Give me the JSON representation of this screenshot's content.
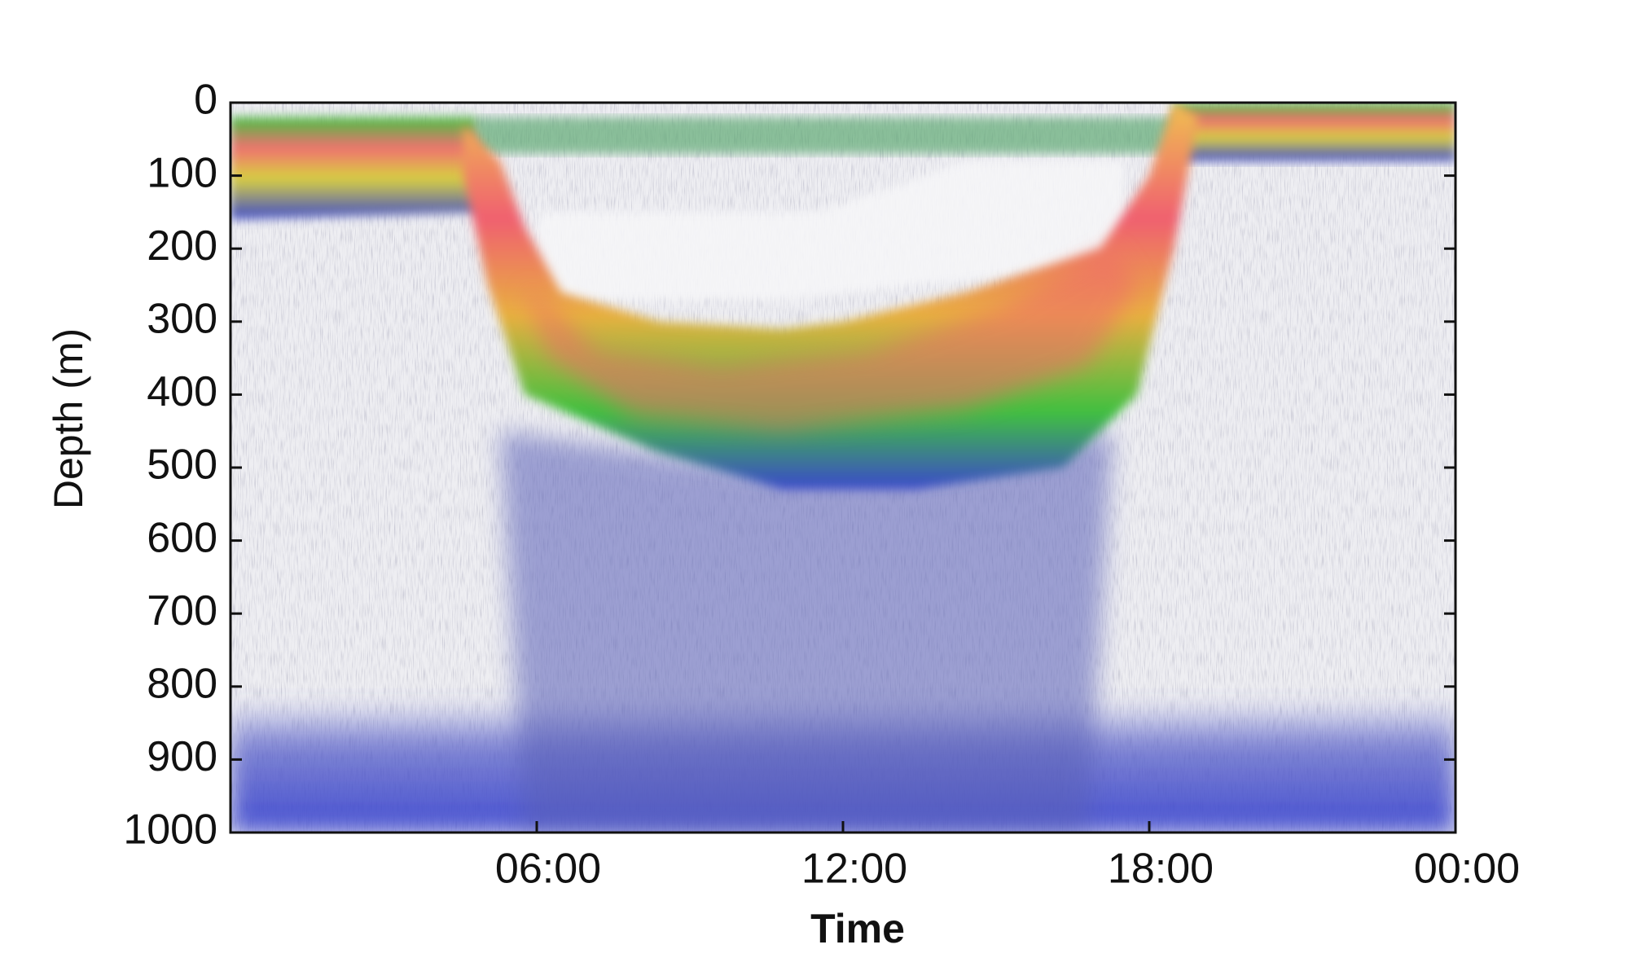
{
  "chart_data": {
    "type": "echogram",
    "x_label": "Time",
    "y_label": "Depth (m)",
    "xlim": [
      0,
      24
    ],
    "xticks": [
      {
        "value": 6,
        "label": "06:00"
      },
      {
        "value": 12,
        "label": "12:00"
      },
      {
        "value": 18,
        "label": "18:00"
      },
      {
        "value": 24,
        "label": "00:00"
      }
    ],
    "ylim": [
      0,
      1000
    ],
    "y_inverted": true,
    "yticks": [
      0,
      100,
      200,
      300,
      400,
      500,
      600,
      700,
      800,
      900,
      1000
    ]
  }
}
